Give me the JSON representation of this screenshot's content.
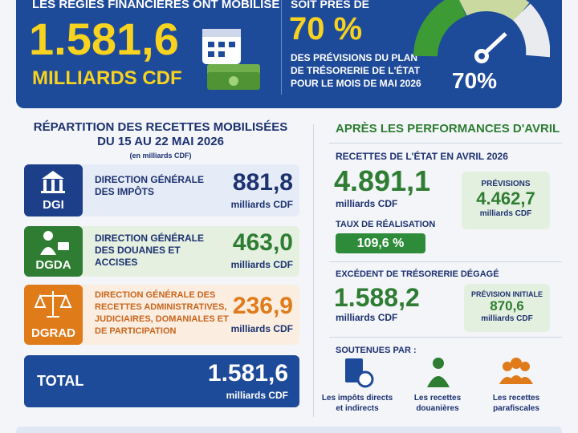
{
  "header": {
    "intro": "LES RÉGIES FINANCIÈRES ONT MOBILISÉ",
    "amount": "1.581,6",
    "unit": "MILLIARDS CDF",
    "share_intro": "SOIT PRÈS DE",
    "share": "70 %",
    "share_text": "DES PRÉVISIONS DU PLAN DE TRÉSORERIE DE L'ÉTAT POUR LE MOIS DE MAI 2026",
    "gauge_label": "70%"
  },
  "breakdown": {
    "title": "RÉPARTITION DES RECETTES MOBILISÉES DU 15 AU 22 MAI 2026",
    "note": "(en milliards CDF)",
    "rows": [
      {
        "abbr": "DGI",
        "name": "DIRECTION GÉNÉRALE DES IMPÔTS",
        "value": "881,8",
        "unit": "milliards CDF"
      },
      {
        "abbr": "DGDA",
        "name": "DIRECTION GÉNÉRALE DES DOUANES ET ACCISES",
        "value": "463,0",
        "unit": "milliards CDF"
      },
      {
        "abbr": "DGRAD",
        "name": "DIRECTION GÉNÉRALE DES RECETTES ADMINISTRATIVES, JUDICIAIRES, DOMANIALES ET DE PARTICIPATION",
        "value": "236,9",
        "unit": "milliards CDF"
      }
    ],
    "total": {
      "label": "TOTAL",
      "value": "1.581,6",
      "unit": "milliards CDF"
    }
  },
  "april": {
    "title": "APRÈS LES PERFORMANCES D'AVRIL",
    "revenue": {
      "label": "RECETTES DE L'ÉTAT EN AVRIL 2026",
      "value": "4.891,1",
      "unit": "milliards CDF",
      "forecast_label": "PRÉVISIONS",
      "forecast": "4.462,7",
      "forecast_unit": "milliards CDF"
    },
    "rate": {
      "label": "TAUX DE RÉALISATION",
      "value": "109,6 %"
    },
    "surplus": {
      "label": "EXCÉDENT DE TRÉSORERIE DÉGAGÉ",
      "value": "1.588,2",
      "unit": "milliards CDF",
      "forecast_label": "PRÉVISION INITIALE",
      "forecast": "870,6",
      "forecast_unit": "milliards CDF"
    },
    "support": {
      "label": "SOUTENUES PAR :",
      "items": [
        "Les impôts directs et indirects",
        "Les recettes douanières",
        "Les recettes parafiscales"
      ]
    }
  }
}
